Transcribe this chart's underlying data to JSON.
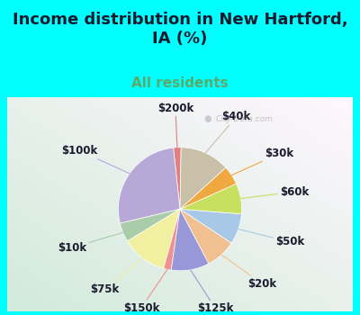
{
  "title": "Income distribution in New Hartford,\nIA (%)",
  "subtitle": "All residents",
  "bg_top": "#00FFFF",
  "labels": [
    "$200k",
    "$100k",
    "$10k",
    "$75k",
    "$150k",
    "$125k",
    "$20k",
    "$50k",
    "$60k",
    "$30k",
    "$40k"
  ],
  "sizes": [
    2,
    27,
    5,
    12,
    2,
    10,
    8,
    8,
    8,
    5,
    13
  ],
  "colors": [
    "#e08080",
    "#b8a8d8",
    "#aacca8",
    "#f0f0a0",
    "#f09090",
    "#9898d8",
    "#f0c090",
    "#a8c8e8",
    "#c8e060",
    "#f0a840",
    "#c8c0a8"
  ],
  "startangle": 89,
  "watermark": "City-Data.com",
  "title_fontsize": 13,
  "subtitle_fontsize": 11,
  "label_fontsize": 8.5
}
